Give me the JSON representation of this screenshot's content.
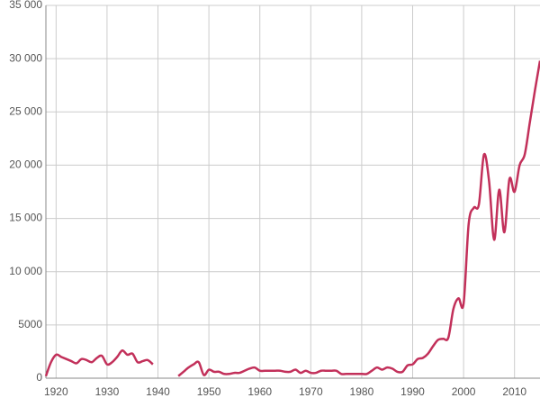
{
  "chart_data": {
    "type": "line",
    "x": [
      1918,
      1919,
      1920,
      1921,
      1922,
      1923,
      1924,
      1925,
      1926,
      1927,
      1928,
      1929,
      1930,
      1931,
      1932,
      1933,
      1934,
      1935,
      1936,
      1937,
      1938,
      1939,
      1940,
      1941,
      1942,
      1943,
      1944,
      1945,
      1946,
      1947,
      1948,
      1949,
      1950,
      1951,
      1952,
      1953,
      1954,
      1955,
      1956,
      1957,
      1958,
      1959,
      1960,
      1961,
      1962,
      1963,
      1964,
      1965,
      1966,
      1967,
      1968,
      1969,
      1970,
      1971,
      1972,
      1973,
      1974,
      1975,
      1976,
      1977,
      1978,
      1979,
      1980,
      1981,
      1982,
      1983,
      1984,
      1985,
      1986,
      1987,
      1988,
      1989,
      1990,
      1991,
      1992,
      1993,
      1994,
      1995,
      1996,
      1997,
      1998,
      1999,
      2000,
      2001,
      2002,
      2003,
      2004,
      2005,
      2006,
      2007,
      2008,
      2009,
      2010,
      2011,
      2012,
      2013,
      2014,
      2015
    ],
    "series": [
      {
        "color": "#c2305a",
        "values": [
          200,
          1500,
          2200,
          2000,
          1800,
          1600,
          1400,
          1800,
          1700,
          1500,
          1900,
          2100,
          1300,
          1500,
          2000,
          2600,
          2200,
          2300,
          1500,
          1600,
          1700,
          1300,
          null,
          null,
          null,
          null,
          200,
          600,
          1000,
          1300,
          1500,
          300,
          800,
          600,
          600,
          400,
          400,
          500,
          500,
          700,
          900,
          1000,
          700,
          700,
          700,
          700,
          700,
          600,
          600,
          800,
          500,
          700,
          500,
          500,
          700,
          700,
          700,
          700,
          400,
          400,
          400,
          400,
          400,
          400,
          700,
          1000,
          800,
          1000,
          900,
          600,
          600,
          1200,
          1300,
          1800,
          1900,
          2300,
          3000,
          3600,
          3700,
          3800,
          6500,
          7500,
          7000,
          14500,
          16000,
          16300,
          21000,
          18500,
          13000,
          17700,
          13700,
          18700,
          17500,
          20000,
          21000,
          24000,
          27000,
          29800
        ]
      }
    ],
    "xlim": [
      1918,
      2015
    ],
    "xticks": [
      1920,
      1930,
      1940,
      1950,
      1960,
      1970,
      1980,
      1990,
      2000,
      2010
    ],
    "ylim": [
      0,
      35000
    ],
    "yticks": [
      0,
      5000,
      {
        "value": 10000,
        "label": "10 000"
      },
      {
        "value": 15000,
        "label": "15 000"
      },
      {
        "value": 20000,
        "label": "20 000"
      },
      {
        "value": 25000,
        "label": "25 000"
      },
      {
        "value": 30000,
        "label": "30 000"
      },
      {
        "value": 35000,
        "label": "35 000"
      }
    ],
    "grid": true
  }
}
